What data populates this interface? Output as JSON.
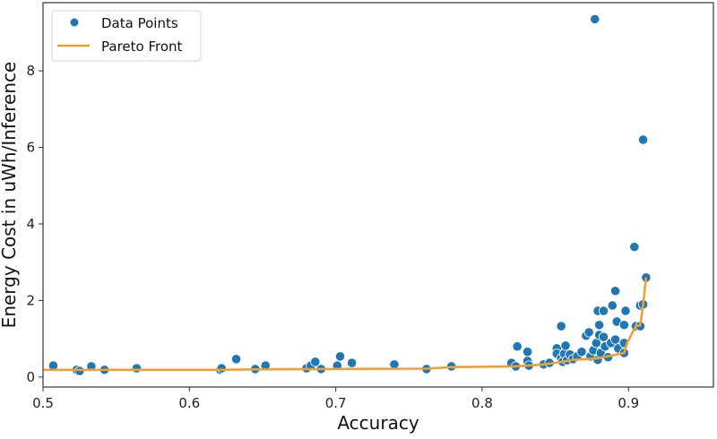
{
  "chart_data": {
    "type": "scatter",
    "title": "",
    "xlabel": "Accuracy",
    "ylabel": "Energy Cost in uWh/Inference",
    "xlim": [
      0.5,
      0.958
    ],
    "ylim": [
      -0.26,
      9.78
    ],
    "xticks": [
      0.5,
      0.6,
      0.7,
      0.8,
      0.9
    ],
    "xtick_labels": [
      "0.5",
      "0.6",
      "0.7",
      "0.8",
      "0.9"
    ],
    "yticks": [
      0,
      2,
      4,
      6,
      8
    ],
    "ytick_labels": [
      "0",
      "2",
      "4",
      "6",
      "8"
    ],
    "grid": false,
    "legend_position": "upper left",
    "legend": [
      "Data Points",
      "Pareto Front"
    ],
    "colors": {
      "points": "#1f77b4",
      "pareto": "#f0a030",
      "axis": "#333333"
    },
    "series": [
      {
        "name": "Data Points",
        "type": "scatter",
        "points": [
          [
            0.507,
            0.3
          ],
          [
            0.523,
            0.19
          ],
          [
            0.525,
            0.16
          ],
          [
            0.533,
            0.28
          ],
          [
            0.542,
            0.19
          ],
          [
            0.564,
            0.23
          ],
          [
            0.621,
            0.19
          ],
          [
            0.622,
            0.23
          ],
          [
            0.632,
            0.47
          ],
          [
            0.645,
            0.21
          ],
          [
            0.652,
            0.3
          ],
          [
            0.68,
            0.23
          ],
          [
            0.683,
            0.3
          ],
          [
            0.686,
            0.4
          ],
          [
            0.69,
            0.21
          ],
          [
            0.701,
            0.3
          ],
          [
            0.703,
            0.54
          ],
          [
            0.711,
            0.37
          ],
          [
            0.74,
            0.33
          ],
          [
            0.762,
            0.21
          ],
          [
            0.779,
            0.28
          ],
          [
            0.82,
            0.37
          ],
          [
            0.823,
            0.28
          ],
          [
            0.824,
            0.8
          ],
          [
            0.831,
            0.66
          ],
          [
            0.831,
            0.42
          ],
          [
            0.832,
            0.3
          ],
          [
            0.842,
            0.33
          ],
          [
            0.846,
            0.37
          ],
          [
            0.851,
            0.75
          ],
          [
            0.851,
            0.61
          ],
          [
            0.854,
            0.49
          ],
          [
            0.855,
            0.4
          ],
          [
            0.856,
            0.61
          ],
          [
            0.857,
            0.82
          ],
          [
            0.858,
            0.44
          ],
          [
            0.86,
            0.59
          ],
          [
            0.862,
            0.47
          ],
          [
            0.865,
            0.54
          ],
          [
            0.868,
            0.66
          ],
          [
            0.854,
            1.33
          ],
          [
            0.871,
            1.08
          ],
          [
            0.873,
            1.17
          ],
          [
            0.874,
            0.54
          ],
          [
            0.876,
            0.7
          ],
          [
            0.877,
            9.35
          ],
          [
            0.878,
            0.89
          ],
          [
            0.879,
            1.73
          ],
          [
            0.879,
            0.45
          ],
          [
            0.88,
            1.36
          ],
          [
            0.88,
            1.1
          ],
          [
            0.881,
            0.63
          ],
          [
            0.883,
            1.73
          ],
          [
            0.883,
            1.05
          ],
          [
            0.884,
            0.8
          ],
          [
            0.886,
            0.52
          ],
          [
            0.888,
            0.89
          ],
          [
            0.889,
            1.87
          ],
          [
            0.891,
            2.25
          ],
          [
            0.891,
            0.98
          ],
          [
            0.892,
            1.45
          ],
          [
            0.893,
            0.75
          ],
          [
            0.897,
            1.36
          ],
          [
            0.897,
            0.89
          ],
          [
            0.897,
            0.63
          ],
          [
            0.898,
            1.73
          ],
          [
            0.904,
            3.4
          ],
          [
            0.905,
            1.33
          ],
          [
            0.908,
            1.33
          ],
          [
            0.908,
            1.87
          ],
          [
            0.91,
            6.2
          ],
          [
            0.91,
            1.9
          ],
          [
            0.912,
            2.6
          ]
        ]
      },
      {
        "name": "Pareto Front",
        "type": "line",
        "points": [
          [
            0.5,
            0.19
          ],
          [
            0.542,
            0.19
          ],
          [
            0.621,
            0.19
          ],
          [
            0.645,
            0.2
          ],
          [
            0.69,
            0.21
          ],
          [
            0.762,
            0.22
          ],
          [
            0.779,
            0.26
          ],
          [
            0.823,
            0.28
          ],
          [
            0.831,
            0.3
          ],
          [
            0.842,
            0.33
          ],
          [
            0.855,
            0.4
          ],
          [
            0.862,
            0.45
          ],
          [
            0.879,
            0.49
          ],
          [
            0.888,
            0.56
          ],
          [
            0.897,
            0.63
          ],
          [
            0.899,
            0.89
          ],
          [
            0.905,
            1.33
          ],
          [
            0.908,
            1.35
          ],
          [
            0.91,
            1.9
          ],
          [
            0.912,
            2.6
          ]
        ]
      }
    ]
  }
}
